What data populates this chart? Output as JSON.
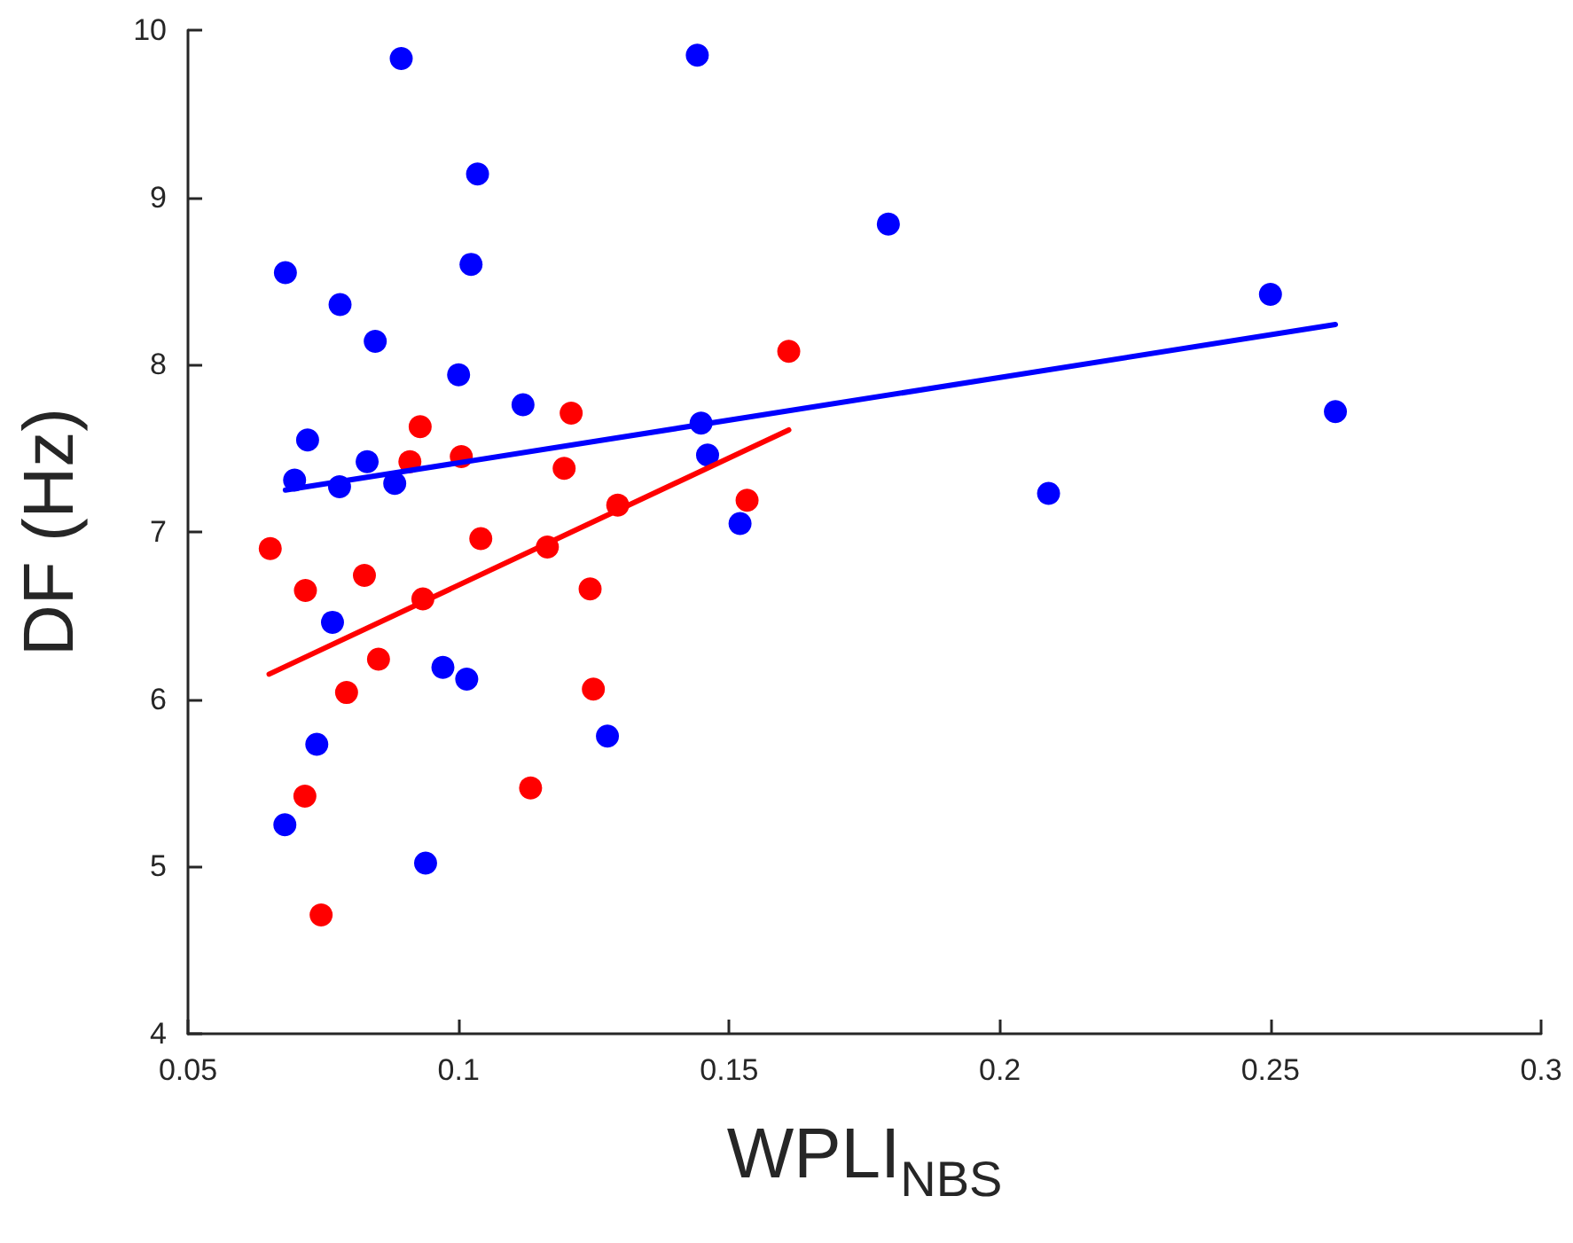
{
  "chart_data": {
    "type": "scatter",
    "xlabel": "WPLI$_{NBS}$",
    "ylabel": "DF (Hz)",
    "xlim": [
      0.05,
      0.3
    ],
    "xticks": [
      0.05,
      0.1,
      0.15,
      0.2,
      0.25,
      0.3
    ],
    "ylim": [
      4,
      10
    ],
    "yticks": [
      4,
      5,
      6,
      7,
      8,
      9,
      10
    ],
    "grid": false,
    "marker": "circle",
    "series": [
      {
        "color": "#0000ff",
        "x": [
          0.0894,
          0.1035,
          0.068,
          0.1023,
          0.0781,
          0.0846,
          0.1,
          0.1119,
          0.0721,
          0.0831,
          0.0697,
          0.078,
          0.0882,
          0.1441,
          0.1794,
          0.1448,
          0.146,
          0.152,
          0.1275,
          0.25,
          0.262,
          0.209,
          0.0767,
          0.0971,
          0.1015,
          0.0738,
          0.0679,
          0.0939
        ],
        "values": [
          9.83,
          9.14,
          8.55,
          8.6,
          8.36,
          8.14,
          7.94,
          7.76,
          7.55,
          7.42,
          7.31,
          7.27,
          7.29,
          9.85,
          8.84,
          7.65,
          7.46,
          7.05,
          5.78,
          8.42,
          7.72,
          7.23,
          6.46,
          6.19,
          6.12,
          5.73,
          5.25,
          5.02
        ]
      },
      {
        "color": "#ff0000",
        "x": [
          0.0929,
          0.1208,
          0.091,
          0.1005,
          0.1195,
          0.0652,
          0.0717,
          0.0826,
          0.1041,
          0.1164,
          0.0934,
          0.0852,
          0.0793,
          0.0716,
          0.1133,
          0.0746,
          0.1243,
          0.1249,
          0.161,
          0.1533,
          0.1294
        ],
        "values": [
          7.63,
          7.71,
          7.42,
          7.45,
          7.38,
          6.9,
          6.65,
          6.74,
          6.96,
          6.91,
          6.6,
          6.24,
          6.04,
          5.42,
          5.47,
          4.71,
          6.66,
          6.06,
          8.08,
          7.19,
          7.16
        ]
      },
      {
        "type": "line",
        "color": "#0000ff",
        "x": [
          0.068,
          0.262
        ],
        "values": [
          7.25,
          8.24
        ],
        "marker": "none",
        "line_style": "solid"
      },
      {
        "type": "line",
        "color": "#ff0000",
        "x": [
          0.065,
          0.161
        ],
        "values": [
          6.15,
          7.61
        ],
        "marker": "none",
        "line_style": "solid"
      }
    ]
  }
}
